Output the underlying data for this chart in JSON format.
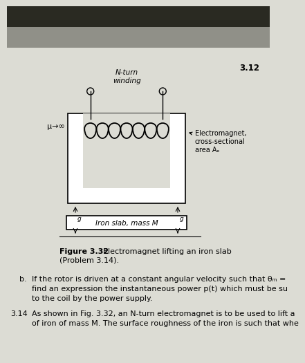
{
  "bg_top_dark": "#1a1a1a",
  "bg_mid_gray": "#b0b0a8",
  "bg_page": "#dcdcd4",
  "page_number": "3.12",
  "winding_label": "N-turn\nwinding",
  "mu_label": "μ→∞",
  "electromagnet_label": "Electromagnet,\ncross-sectional\narea Aₑ",
  "iron_label": "Iron slab, mass M",
  "fig_bold": "Figure 3.32",
  "fig_normal": "  Electromagnet lifting an iron slab\n(Problem 3.14).",
  "body_b_prefix": "b.",
  "body_b1": "If the rotor is driven at a constant angular velocity such that θₘ =",
  "body_b2": "find an expression the instantaneous power p(t) which must be su",
  "body_b3": "the coil by the power supply.",
  "body_314_prefix": "3.14",
  "body_314_1": "As shown in Fig. 3.32, an N-turn electromagnet is to be used to lift a",
  "body_314_2": "of iron of mass M. The surface roughness of the iron is such that whe",
  "core_lw": 1.2,
  "slab_lw": 1.2,
  "n_coils": 7
}
